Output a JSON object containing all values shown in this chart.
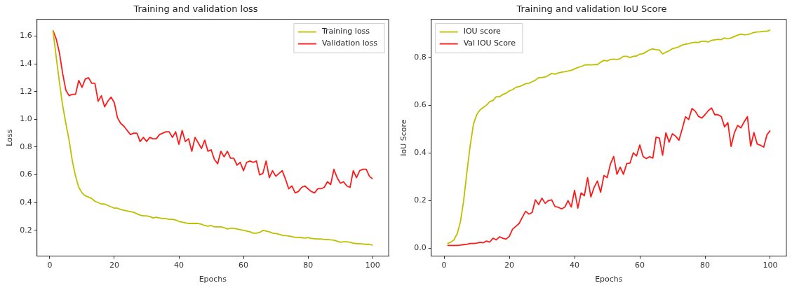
{
  "chart_data": [
    {
      "type": "line",
      "title": "Training and validation loss",
      "xlabel": "Epochs",
      "ylabel": "Loss",
      "xlim": [
        -3.95,
        104.95
      ],
      "xticks": [
        0,
        20,
        40,
        60,
        80,
        100
      ],
      "ylim": [
        0.015,
        1.72
      ],
      "yticks": [
        0.2,
        0.4,
        0.6,
        0.8,
        {
          "value": 1,
          "label": "1.0"
        },
        1.2,
        1.4,
        1.6
      ],
      "legend": "top right",
      "marker": "none",
      "line_style": "solid",
      "x": [
        1,
        2,
        3,
        4,
        5,
        6,
        7,
        8,
        9,
        10,
        11,
        12,
        13,
        14,
        15,
        16,
        17,
        18,
        19,
        20,
        21,
        22,
        23,
        24,
        25,
        26,
        27,
        28,
        29,
        30,
        31,
        32,
        33,
        34,
        35,
        36,
        37,
        38,
        39,
        40,
        41,
        42,
        43,
        44,
        45,
        46,
        47,
        48,
        49,
        50,
        51,
        52,
        53,
        54,
        55,
        56,
        57,
        58,
        59,
        60,
        61,
        62,
        63,
        64,
        65,
        66,
        67,
        68,
        69,
        70,
        71,
        72,
        73,
        74,
        75,
        76,
        77,
        78,
        79,
        80,
        81,
        82,
        83,
        84,
        85,
        86,
        87,
        88,
        89,
        90,
        91,
        92,
        93,
        94,
        95,
        96,
        97,
        98,
        99,
        100
      ],
      "series": [
        {
          "name": "Training loss",
          "color": "#bfbf00",
          "values": [
            1.64,
            1.45,
            1.27,
            1.1,
            0.97,
            0.85,
            0.7,
            0.59,
            0.51,
            0.47,
            0.45,
            0.44,
            0.43,
            0.41,
            0.4,
            0.39,
            0.39,
            0.38,
            0.37,
            0.36,
            0.36,
            0.35,
            0.345,
            0.34,
            0.335,
            0.33,
            0.32,
            0.31,
            0.305,
            0.305,
            0.3,
            0.29,
            0.295,
            0.29,
            0.285,
            0.285,
            0.28,
            0.28,
            0.275,
            0.265,
            0.26,
            0.255,
            0.25,
            0.25,
            0.25,
            0.25,
            0.245,
            0.235,
            0.23,
            0.235,
            0.225,
            0.225,
            0.225,
            0.22,
            0.21,
            0.215,
            0.215,
            0.21,
            0.205,
            0.2,
            0.195,
            0.19,
            0.18,
            0.18,
            0.185,
            0.2,
            0.195,
            0.19,
            0.18,
            0.178,
            0.172,
            0.165,
            0.162,
            0.16,
            0.155,
            0.15,
            0.15,
            0.148,
            0.145,
            0.148,
            0.142,
            0.14,
            0.138,
            0.138,
            0.135,
            0.135,
            0.132,
            0.13,
            0.122,
            0.115,
            0.118,
            0.118,
            0.115,
            0.108,
            0.105,
            0.104,
            0.102,
            0.1,
            0.1,
            0.093
          ]
        },
        {
          "name": "Validation loss",
          "color": "#ff1a1a",
          "values": [
            1.64,
            1.58,
            1.48,
            1.33,
            1.21,
            1.17,
            1.18,
            1.18,
            1.28,
            1.23,
            1.29,
            1.3,
            1.26,
            1.26,
            1.13,
            1.17,
            1.09,
            1.13,
            1.16,
            1.12,
            1.01,
            0.97,
            0.95,
            0.92,
            0.89,
            0.9,
            0.9,
            0.84,
            0.87,
            0.84,
            0.87,
            0.86,
            0.86,
            0.89,
            0.9,
            0.91,
            0.91,
            0.87,
            0.91,
            0.82,
            0.92,
            0.84,
            0.86,
            0.77,
            0.87,
            0.83,
            0.79,
            0.85,
            0.77,
            0.78,
            0.71,
            0.68,
            0.77,
            0.73,
            0.77,
            0.72,
            0.72,
            0.67,
            0.69,
            0.63,
            0.69,
            0.7,
            0.69,
            0.7,
            0.6,
            0.61,
            0.7,
            0.58,
            0.63,
            0.59,
            0.61,
            0.63,
            0.57,
            0.5,
            0.52,
            0.47,
            0.48,
            0.51,
            0.52,
            0.5,
            0.48,
            0.47,
            0.5,
            0.5,
            0.51,
            0.55,
            0.53,
            0.64,
            0.58,
            0.54,
            0.55,
            0.52,
            0.51,
            0.63,
            0.58,
            0.63,
            0.64,
            0.64,
            0.59,
            0.57
          ]
        }
      ]
    },
    {
      "type": "line",
      "title": "Training and validation IoU Score",
      "xlabel": "Epochs",
      "ylabel": "IoU Score",
      "xlim": [
        -3.95,
        104.95
      ],
      "xticks": [
        0,
        20,
        40,
        60,
        80,
        100
      ],
      "ylim": [
        -0.033,
        0.96
      ],
      "yticks": [
        {
          "value": 0,
          "label": "0.0"
        },
        0.2,
        0.4,
        0.6,
        0.8
      ],
      "legend": "top left",
      "marker": "none",
      "line_style": "solid",
      "x": [
        1,
        2,
        3,
        4,
        5,
        6,
        7,
        8,
        9,
        10,
        11,
        12,
        13,
        14,
        15,
        16,
        17,
        18,
        19,
        20,
        21,
        22,
        23,
        24,
        25,
        26,
        27,
        28,
        29,
        30,
        31,
        32,
        33,
        34,
        35,
        36,
        37,
        38,
        39,
        40,
        41,
        42,
        43,
        44,
        45,
        46,
        47,
        48,
        49,
        50,
        51,
        52,
        53,
        54,
        55,
        56,
        57,
        58,
        59,
        60,
        61,
        62,
        63,
        64,
        65,
        66,
        67,
        68,
        69,
        70,
        71,
        72,
        73,
        74,
        75,
        76,
        77,
        78,
        79,
        80,
        81,
        82,
        83,
        84,
        85,
        86,
        87,
        88,
        89,
        90,
        91,
        92,
        93,
        94,
        95,
        96,
        97,
        98,
        99,
        100
      ],
      "series": [
        {
          "name": "IOU score",
          "color": "#bfbf00",
          "values": [
            0.02,
            0.025,
            0.035,
            0.06,
            0.11,
            0.2,
            0.32,
            0.43,
            0.52,
            0.56,
            0.58,
            0.59,
            0.6,
            0.615,
            0.62,
            0.635,
            0.635,
            0.645,
            0.65,
            0.66,
            0.665,
            0.675,
            0.678,
            0.683,
            0.69,
            0.692,
            0.698,
            0.705,
            0.715,
            0.716,
            0.718,
            0.725,
            0.733,
            0.73,
            0.735,
            0.738,
            0.74,
            0.743,
            0.746,
            0.752,
            0.758,
            0.762,
            0.768,
            0.77,
            0.769,
            0.77,
            0.77,
            0.78,
            0.788,
            0.785,
            0.792,
            0.793,
            0.792,
            0.795,
            0.805,
            0.805,
            0.8,
            0.805,
            0.806,
            0.814,
            0.816,
            0.824,
            0.832,
            0.836,
            0.833,
            0.831,
            0.815,
            0.822,
            0.828,
            0.837,
            0.84,
            0.845,
            0.852,
            0.856,
            0.858,
            0.862,
            0.864,
            0.863,
            0.868,
            0.868,
            0.865,
            0.872,
            0.874,
            0.876,
            0.875,
            0.882,
            0.878,
            0.882,
            0.888,
            0.894,
            0.898,
            0.895,
            0.896,
            0.9,
            0.905,
            0.907,
            0.908,
            0.91,
            0.91,
            0.915
          ]
        },
        {
          "name": "Val IOU Score",
          "color": "#ff1a1a",
          "values": [
            0.012,
            0.012,
            0.012,
            0.012,
            0.013,
            0.015,
            0.017,
            0.02,
            0.02,
            0.021,
            0.025,
            0.023,
            0.03,
            0.026,
            0.042,
            0.035,
            0.048,
            0.042,
            0.038,
            0.05,
            0.08,
            0.092,
            0.104,
            0.13,
            0.155,
            0.143,
            0.15,
            0.203,
            0.183,
            0.21,
            0.188,
            0.2,
            0.203,
            0.175,
            0.172,
            0.165,
            0.172,
            0.2,
            0.173,
            0.243,
            0.168,
            0.232,
            0.22,
            0.296,
            0.215,
            0.255,
            0.282,
            0.235,
            0.305,
            0.296,
            0.353,
            0.385,
            0.31,
            0.34,
            0.31,
            0.355,
            0.357,
            0.4,
            0.387,
            0.433,
            0.385,
            0.376,
            0.384,
            0.378,
            0.466,
            0.462,
            0.39,
            0.484,
            0.445,
            0.48,
            0.47,
            0.453,
            0.5,
            0.551,
            0.54,
            0.586,
            0.575,
            0.553,
            0.546,
            0.56,
            0.577,
            0.588,
            0.56,
            0.56,
            0.552,
            0.509,
            0.527,
            0.427,
            0.484,
            0.515,
            0.505,
            0.53,
            0.552,
            0.428,
            0.485,
            0.437,
            0.432,
            0.424,
            0.476,
            0.494
          ]
        }
      ]
    }
  ]
}
